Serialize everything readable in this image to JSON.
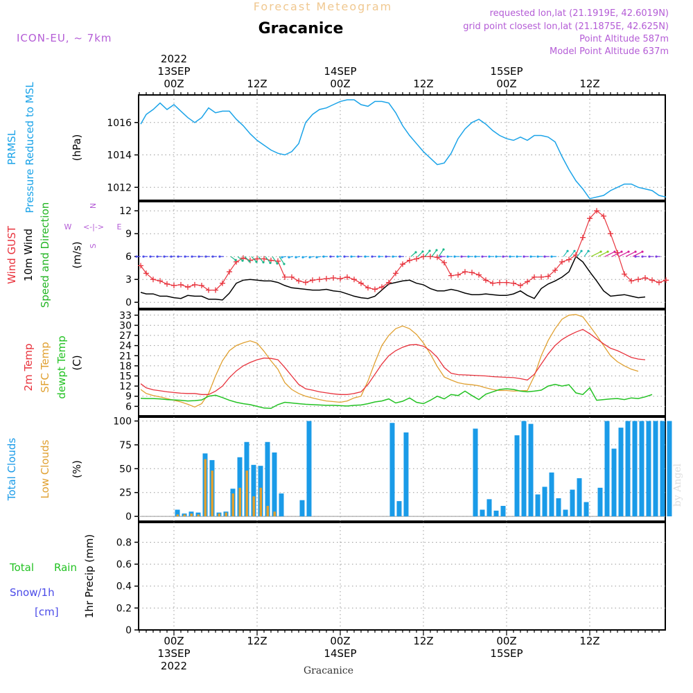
{
  "header": {
    "title": "Forecast Meteogram",
    "location": "Gracanice",
    "model": "ICON-EU, ~ 7km",
    "requested": "requested lon,lat (21.1919E, 42.6019N)",
    "grid_point": "grid point closest lon,lat (21.1875E, 42.625N)",
    "point_altitude": "Point Altitude 587m",
    "model_altitude": "Model Point Altitude 637m",
    "footer_location": "Gracanice",
    "watermark": "by Angel"
  },
  "colors": {
    "pressure": "#1aa3e8",
    "gust": "#e8323c",
    "wind": "#000000",
    "direction": "#22b522",
    "temp": "#e8323c",
    "sfc_temp": "#e0a030",
    "dewpt": "#22c222",
    "total_clouds": "#1a9be8",
    "low_clouds": "#e0a030",
    "label_purple": "#b45cd6",
    "label_blue": "#4a4ae8",
    "rain_green": "#22c222"
  },
  "top_axis": [
    {
      "hour": 0,
      "lines": [
        "2022",
        "13SEP",
        "00Z"
      ]
    },
    {
      "hour": 12,
      "lines": [
        "12Z"
      ]
    },
    {
      "hour": 24,
      "lines": [
        "14SEP",
        "00Z"
      ]
    },
    {
      "hour": 36,
      "lines": [
        "12Z"
      ]
    },
    {
      "hour": 48,
      "lines": [
        "15SEP",
        "00Z"
      ]
    },
    {
      "hour": 60,
      "lines": [
        "12Z"
      ]
    }
  ],
  "bottom_axis": [
    {
      "hour": 0,
      "lines": [
        "00Z",
        "13SEP",
        "2022"
      ]
    },
    {
      "hour": 12,
      "lines": [
        "12Z"
      ]
    },
    {
      "hour": 24,
      "lines": [
        "00Z",
        "14SEP"
      ]
    },
    {
      "hour": 36,
      "lines": [
        "12Z"
      ]
    },
    {
      "hour": 48,
      "lines": [
        "00Z",
        "15SEP"
      ]
    },
    {
      "hour": 60,
      "lines": [
        "12Z"
      ]
    }
  ],
  "chart_data": [
    {
      "type": "line",
      "panel": "pressure",
      "label_left": [
        "PRMSL",
        "Pressure Reduced to MSL"
      ],
      "ylabel": "(hPa)",
      "yticks": [
        1012,
        1014,
        1016
      ],
      "ylim": [
        1011.2,
        1017.7
      ],
      "x_hours": [
        -4.8,
        -4,
        -3,
        -2,
        -1,
        0,
        1,
        2,
        3,
        4,
        5,
        6,
        7,
        8,
        9,
        10,
        11,
        12,
        13,
        14,
        15,
        16,
        17,
        18,
        19,
        20,
        21,
        22,
        23,
        24,
        25,
        26,
        27,
        28,
        29,
        30,
        31,
        32,
        33,
        34,
        35,
        36,
        37,
        38,
        39,
        40,
        41,
        42,
        43,
        44,
        45,
        46,
        47,
        48,
        49,
        50,
        51,
        52,
        53,
        54,
        55,
        56,
        57,
        58,
        59,
        60,
        61,
        62,
        63,
        64,
        65,
        66,
        67,
        68,
        69,
        70,
        71,
        71.2
      ],
      "series": [
        {
          "name": "PRMSL",
          "values": [
            1015.9,
            1016.5,
            1016.8,
            1017.2,
            1016.8,
            1017.1,
            1016.7,
            1016.3,
            1016.0,
            1016.3,
            1016.9,
            1016.6,
            1016.7,
            1016.7,
            1016.2,
            1015.8,
            1015.3,
            1014.9,
            1014.6,
            1014.3,
            1014.1,
            1014.0,
            1014.2,
            1014.7,
            1016.0,
            1016.5,
            1016.8,
            1016.9,
            1017.1,
            1017.3,
            1017.4,
            1017.4,
            1017.1,
            1017.0,
            1017.3,
            1017.3,
            1017.2,
            1016.6,
            1015.8,
            1015.2,
            1014.7,
            1014.2,
            1013.8,
            1013.4,
            1013.5,
            1014.1,
            1015.0,
            1015.6,
            1016.0,
            1016.2,
            1015.9,
            1015.5,
            1015.2,
            1015.0,
            1014.9,
            1015.1,
            1014.9,
            1015.2,
            1015.2,
            1015.1,
            1014.8,
            1013.9,
            1013.1,
            1012.4,
            1011.9,
            1011.3,
            1011.4,
            1011.5,
            1011.8,
            1012.0,
            1012.2,
            1012.2,
            1012.0,
            1011.9,
            1011.8,
            1011.5,
            1011.4
          ]
        }
      ]
    },
    {
      "type": "line",
      "panel": "wind",
      "label_left": [
        "Wind GUST",
        "10m Wind",
        "Speed and Direction"
      ],
      "ylabel": "(m/s)",
      "compass": {
        "n": "N",
        "s": "S",
        "w": "W",
        "e": "E"
      },
      "yticks": [
        0,
        3,
        6,
        9,
        12
      ],
      "ylim": [
        -0.8,
        13.2
      ],
      "x_hours": [
        -4.8,
        -4,
        -3,
        -2,
        -1,
        0,
        1,
        2,
        3,
        4,
        5,
        6,
        7,
        8,
        9,
        10,
        11,
        12,
        13,
        14,
        15,
        16,
        17,
        18,
        19,
        20,
        21,
        22,
        23,
        24,
        25,
        26,
        27,
        28,
        29,
        30,
        31,
        32,
        33,
        34,
        35,
        36,
        37,
        38,
        39,
        40,
        41,
        42,
        43,
        44,
        45,
        46,
        47,
        48,
        49,
        50,
        51,
        52,
        53,
        54,
        55,
        56,
        57,
        58,
        59,
        60,
        61,
        62,
        63,
        64,
        65,
        66,
        67,
        68,
        69,
        70,
        71
      ],
      "series": [
        {
          "name": "Wind GUST",
          "values": [
            4.8,
            3.8,
            3.0,
            2.8,
            2.4,
            2.2,
            2.3,
            2.0,
            2.3,
            2.2,
            1.6,
            1.6,
            2.5,
            4.0,
            5.3,
            5.8,
            5.5,
            5.7,
            5.7,
            5.5,
            5.4,
            3.3,
            3.3,
            2.8,
            2.6,
            2.9,
            3.0,
            3.1,
            3.2,
            3.1,
            3.3,
            3.0,
            2.5,
            1.9,
            1.7,
            2.0,
            2.6,
            3.8,
            5.0,
            5.5,
            5.7,
            6.0,
            6.0,
            5.9,
            5.2,
            3.5,
            3.6,
            4.0,
            3.9,
            3.6,
            2.9,
            2.5,
            2.6,
            2.6,
            2.5,
            2.2,
            2.7,
            3.3,
            3.3,
            3.4,
            4.2,
            5.3,
            5.6,
            6.2,
            8.5,
            11.0,
            12.0,
            11.3,
            9.0,
            6.5,
            3.7,
            2.8,
            3.0,
            3.2,
            2.9,
            2.6,
            2.9
          ]
        },
        {
          "name": "10m Wind",
          "values": [
            1.3,
            1.1,
            1.1,
            0.8,
            0.8,
            0.6,
            0.5,
            0.9,
            0.8,
            0.8,
            0.4,
            0.4,
            0.3,
            1.2,
            2.5,
            2.9,
            3.0,
            2.9,
            2.8,
            2.8,
            2.6,
            2.2,
            1.9,
            1.8,
            1.7,
            1.6,
            1.6,
            1.7,
            1.5,
            1.4,
            1.1,
            0.8,
            0.6,
            0.5,
            0.8,
            1.6,
            2.4,
            2.6,
            2.8,
            2.9,
            2.5,
            2.3,
            1.8,
            1.5,
            1.5,
            1.7,
            1.5,
            1.2,
            1.0,
            1.0,
            1.1,
            1.0,
            0.9,
            0.9,
            1.1,
            1.5,
            0.9,
            0.5,
            1.8,
            2.4,
            2.8,
            3.3,
            4.0,
            6.0,
            5.3,
            4.0,
            2.8,
            1.5,
            0.8,
            0.9,
            1.0,
            0.8,
            0.6,
            0.7
          ]
        }
      ]
    },
    {
      "type": "line",
      "panel": "temperature",
      "label_left": [
        "2m Temp",
        "SFC Temp",
        "dewpt Temp"
      ],
      "ylabel": "(C)",
      "yticks": [
        6,
        9,
        12,
        15,
        18,
        21,
        24,
        27,
        30,
        33
      ],
      "ylim": [
        3.2,
        34.6
      ],
      "x_hours": [
        -4.8,
        -4,
        -3,
        -2,
        -1,
        0,
        1,
        2,
        3,
        4,
        5,
        6,
        7,
        8,
        9,
        10,
        11,
        12,
        13,
        14,
        15,
        16,
        17,
        18,
        19,
        20,
        21,
        22,
        23,
        24,
        25,
        26,
        27,
        28,
        29,
        30,
        31,
        32,
        33,
        34,
        35,
        36,
        37,
        38,
        39,
        40,
        41,
        42,
        43,
        44,
        45,
        46,
        47,
        48,
        49,
        50,
        51,
        52,
        53,
        54,
        55,
        56,
        57,
        58,
        59,
        60,
        61,
        62,
        63,
        64,
        65,
        66,
        67,
        68,
        69,
        70,
        71
      ],
      "series": [
        {
          "name": "2m Temp",
          "values": [
            12.7,
            11.5,
            10.9,
            10.6,
            10.3,
            10.1,
            9.9,
            9.8,
            9.8,
            9.5,
            9.5,
            10.5,
            12.0,
            14.5,
            16.5,
            18.0,
            19.0,
            19.8,
            20.3,
            20.2,
            19.8,
            17.5,
            15.0,
            12.5,
            11.2,
            10.8,
            10.3,
            10.0,
            9.7,
            9.5,
            9.5,
            9.8,
            10.3,
            12.5,
            15.5,
            18.5,
            21.0,
            22.5,
            23.5,
            24.2,
            24.3,
            23.8,
            22.5,
            20.5,
            17.5,
            15.8,
            15.4,
            15.3,
            15.2,
            15.1,
            15.0,
            14.8,
            14.7,
            14.6,
            14.5,
            14.2,
            13.8,
            15.5,
            18.5,
            21.5,
            24.0,
            25.8,
            27.0,
            28.0,
            28.8,
            27.5,
            26.0,
            24.5,
            23.2,
            22.5,
            21.5,
            20.5,
            20.0,
            19.8
          ]
        },
        {
          "name": "SFC Temp",
          "values": [
            11.0,
            9.8,
            9.2,
            8.8,
            8.3,
            7.8,
            7.3,
            6.6,
            5.8,
            6.8,
            9.8,
            15.0,
            19.5,
            22.5,
            24.0,
            24.8,
            25.4,
            24.7,
            22.3,
            19.5,
            17.0,
            13.0,
            11.0,
            9.8,
            9.0,
            8.5,
            8.0,
            7.6,
            7.4,
            7.2,
            7.6,
            8.5,
            9.0,
            13.5,
            19.0,
            24.0,
            27.0,
            29.0,
            29.8,
            29.0,
            27.3,
            24.8,
            21.5,
            17.8,
            14.7,
            13.8,
            13.0,
            12.6,
            12.4,
            12.1,
            11.5,
            11.0,
            10.7,
            10.7,
            10.5,
            10.6,
            10.7,
            15.0,
            21.0,
            25.5,
            29.0,
            31.8,
            33.0,
            33.2,
            32.5,
            29.8,
            27.0,
            24.0,
            21.0,
            19.2,
            18.0,
            17.0,
            16.4
          ]
        },
        {
          "name": "dewpt Temp",
          "values": [
            8.4,
            8.3,
            8.3,
            8.2,
            8.0,
            7.9,
            7.8,
            7.6,
            7.7,
            7.9,
            9.0,
            9.3,
            8.6,
            7.8,
            7.2,
            6.8,
            6.5,
            6.0,
            5.5,
            5.4,
            6.5,
            7.2,
            7.0,
            6.8,
            6.6,
            6.5,
            6.4,
            6.3,
            6.3,
            6.2,
            6.1,
            6.3,
            6.4,
            6.8,
            7.3,
            7.6,
            8.2,
            7.0,
            7.5,
            8.5,
            7.2,
            6.8,
            7.8,
            9.0,
            8.2,
            9.5,
            9.2,
            10.5,
            9.2,
            8.0,
            9.6,
            10.3,
            11.0,
            11.2,
            11.0,
            10.5,
            10.3,
            10.5,
            10.8,
            12.0,
            12.5,
            12.0,
            12.4,
            10.0,
            9.5,
            11.5,
            7.8,
            8.0,
            8.2,
            8.3,
            8.0,
            8.5,
            8.3,
            8.8,
            9.5
          ]
        }
      ]
    },
    {
      "type": "bar",
      "panel": "clouds",
      "label_left": [
        "Total Clouds",
        "Low Clouds"
      ],
      "ylabel": "(%)",
      "yticks": [
        0,
        25,
        50,
        75,
        100
      ],
      "ylim": [
        -5,
        104
      ],
      "x_hours": [
        0,
        1,
        2,
        3,
        4,
        5,
        6,
        7,
        8,
        9,
        10,
        11,
        12,
        13,
        14,
        15,
        16,
        17,
        18,
        19,
        20,
        21,
        22,
        23,
        24,
        25,
        26,
        27,
        28,
        29,
        30,
        31,
        32,
        33,
        34,
        35,
        36,
        37,
        38,
        39,
        40,
        41,
        42,
        43,
        44,
        45,
        46,
        47,
        48,
        49,
        50,
        51,
        52,
        53,
        54,
        55,
        56,
        57,
        58,
        59,
        60,
        61,
        62,
        63,
        64,
        65,
        66,
        67,
        68,
        69,
        70,
        71
      ],
      "series": [
        {
          "name": "Total Clouds",
          "values": [
            7,
            3,
            5,
            4,
            66,
            59,
            4,
            5,
            29,
            62,
            78,
            54,
            53,
            78,
            67,
            24,
            0,
            0,
            17,
            100,
            0,
            0,
            0,
            0,
            0,
            0,
            0,
            0,
            0,
            0,
            0,
            98,
            16,
            88,
            0,
            0,
            0,
            0,
            0,
            0,
            0,
            0,
            0,
            92,
            7,
            18,
            6,
            11,
            0,
            85,
            100,
            97,
            23,
            31,
            46,
            19,
            7,
            28,
            40,
            15,
            0,
            30,
            100,
            71,
            93,
            100,
            100,
            100,
            100,
            100,
            100,
            100
          ]
        },
        {
          "name": "Low Clouds",
          "values": [
            2,
            2,
            3,
            2,
            60,
            48,
            3,
            4,
            24,
            30,
            48,
            21,
            30,
            11,
            5,
            0,
            0,
            0,
            0,
            0,
            0,
            0,
            0,
            0,
            0,
            0,
            0,
            0,
            0,
            0,
            0,
            0,
            0,
            0,
            0,
            0,
            0,
            0,
            0,
            0,
            0,
            0,
            0,
            0,
            0,
            0,
            0,
            0,
            0,
            0,
            0,
            0,
            0,
            0,
            0,
            0,
            0,
            0,
            0,
            0,
            0,
            0,
            0,
            0,
            0,
            0,
            0,
            0,
            0,
            0,
            0,
            0
          ]
        }
      ]
    },
    {
      "type": "bar",
      "panel": "precip",
      "label_left": [
        "Total",
        "Rain",
        "Snow/1h",
        "[cm]"
      ],
      "ylabel": "1hr Precip (mm)",
      "yticks": [
        0,
        0.2,
        0.4,
        0.6,
        0.8
      ],
      "ytick_labels": [
        "0",
        "0.2",
        "0.4",
        "0.6",
        "0.8"
      ],
      "ylim": [
        0,
        0.98
      ],
      "series": [
        {
          "name": "Total Rain",
          "values": []
        }
      ]
    }
  ]
}
